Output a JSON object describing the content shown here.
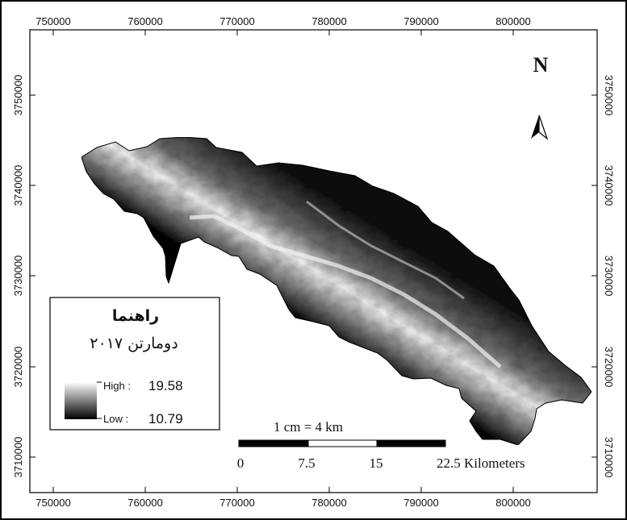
{
  "map": {
    "x_axis_ticks": [
      "750000",
      "760000",
      "770000",
      "780000",
      "790000",
      "800000"
    ],
    "y_axis_ticks": [
      "3750000",
      "3740000",
      "3730000",
      "3720000",
      "3710000"
    ],
    "north_label": "N",
    "north_icon": "north-arrow-icon",
    "scale": {
      "ratio_text": "1 cm = 4 km",
      "labels": [
        "0",
        "7.5",
        "15",
        "22.5 Kilometers"
      ],
      "colors": [
        "#000000",
        "#ffffff",
        "#000000",
        "#000000"
      ]
    },
    "legend": {
      "title": "راهنما",
      "subtitle": "دومارتن ۲۰۱۷",
      "high_label": "High :",
      "high_value": "19.58",
      "low_label": "Low :",
      "low_value": "10.79",
      "gradient": [
        "#ffffff",
        "#000000"
      ]
    },
    "terrain": {
      "high_color": "#ffffff",
      "low_color": "#000000"
    }
  }
}
